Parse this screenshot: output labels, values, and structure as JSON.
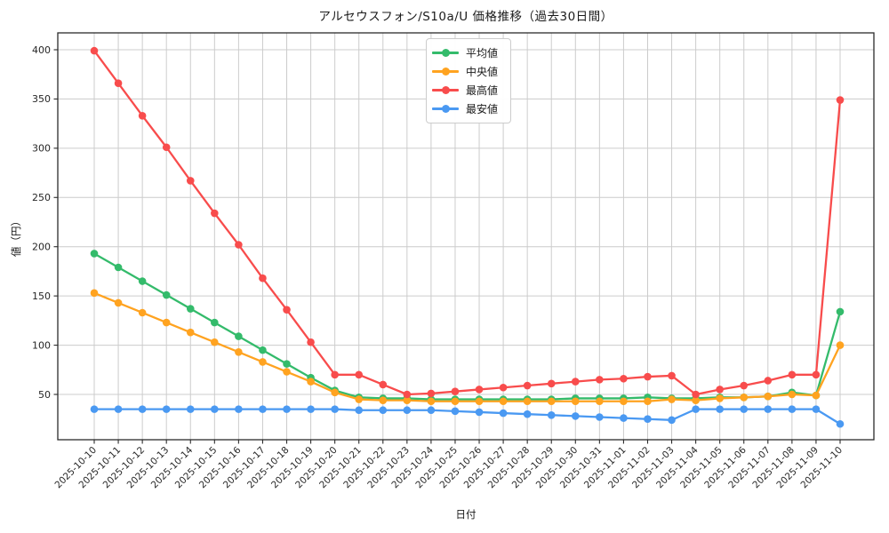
{
  "chart": {
    "title": "アルセウスフォン/S10a/U 価格推移（過去30日間）",
    "xlabel": "日付",
    "ylabel": "値（円）"
  },
  "chart_data": {
    "type": "line",
    "x": [
      "2025-10-10",
      "2025-10-11",
      "2025-10-12",
      "2025-10-13",
      "2025-10-14",
      "2025-10-15",
      "2025-10-16",
      "2025-10-17",
      "2025-10-18",
      "2025-10-19",
      "2025-10-20",
      "2025-10-21",
      "2025-10-22",
      "2025-10-23",
      "2025-10-24",
      "2025-10-25",
      "2025-10-26",
      "2025-10-27",
      "2025-10-28",
      "2025-10-29",
      "2025-10-30",
      "2025-10-31",
      "2025-11-01",
      "2025-11-02",
      "2025-11-03",
      "2025-11-04",
      "2025-11-05",
      "2025-11-06",
      "2025-11-07",
      "2025-11-08",
      "2025-11-09",
      "2025-11-10"
    ],
    "series": [
      {
        "key": "average",
        "name": "平均値",
        "color": "#34bb6b",
        "values": [
          193,
          179,
          165,
          151,
          137,
          123,
          109,
          95,
          81,
          67,
          54,
          47,
          46,
          46,
          45,
          45,
          45,
          45,
          45,
          45,
          46,
          46,
          46,
          47,
          46,
          46,
          47,
          47,
          48,
          52,
          49,
          134
        ]
      },
      {
        "key": "median",
        "name": "中央値",
        "color": "#ffa320",
        "values": [
          153,
          143,
          133,
          123,
          113,
          103,
          93,
          83,
          73,
          63,
          52,
          45,
          44,
          44,
          43,
          43,
          43,
          43,
          43,
          43,
          43,
          43,
          43,
          43,
          45,
          44,
          46,
          47,
          48,
          50,
          49,
          100
        ]
      },
      {
        "key": "max",
        "name": "最高値",
        "color": "#f84c4c",
        "values": [
          399,
          366,
          333,
          301,
          267,
          234,
          202,
          168,
          136,
          103,
          70,
          70,
          60,
          50,
          51,
          53,
          55,
          57,
          59,
          61,
          63,
          65,
          66,
          68,
          69,
          50,
          55,
          59,
          64,
          70,
          70,
          349
        ]
      },
      {
        "key": "min",
        "name": "最安値",
        "color": "#4a99f2",
        "values": [
          35,
          35,
          35,
          35,
          35,
          35,
          35,
          35,
          35,
          35,
          35,
          34,
          34,
          34,
          34,
          33,
          32,
          31,
          30,
          29,
          28,
          27,
          26,
          25,
          24,
          35,
          35,
          35,
          35,
          35,
          35,
          20
        ]
      }
    ],
    "yticks": [
      50,
      100,
      150,
      200,
      250,
      300,
      350,
      400
    ],
    "ylim": [
      4,
      417
    ],
    "grid": true,
    "legend_position": "top-center",
    "marker": "circle"
  }
}
